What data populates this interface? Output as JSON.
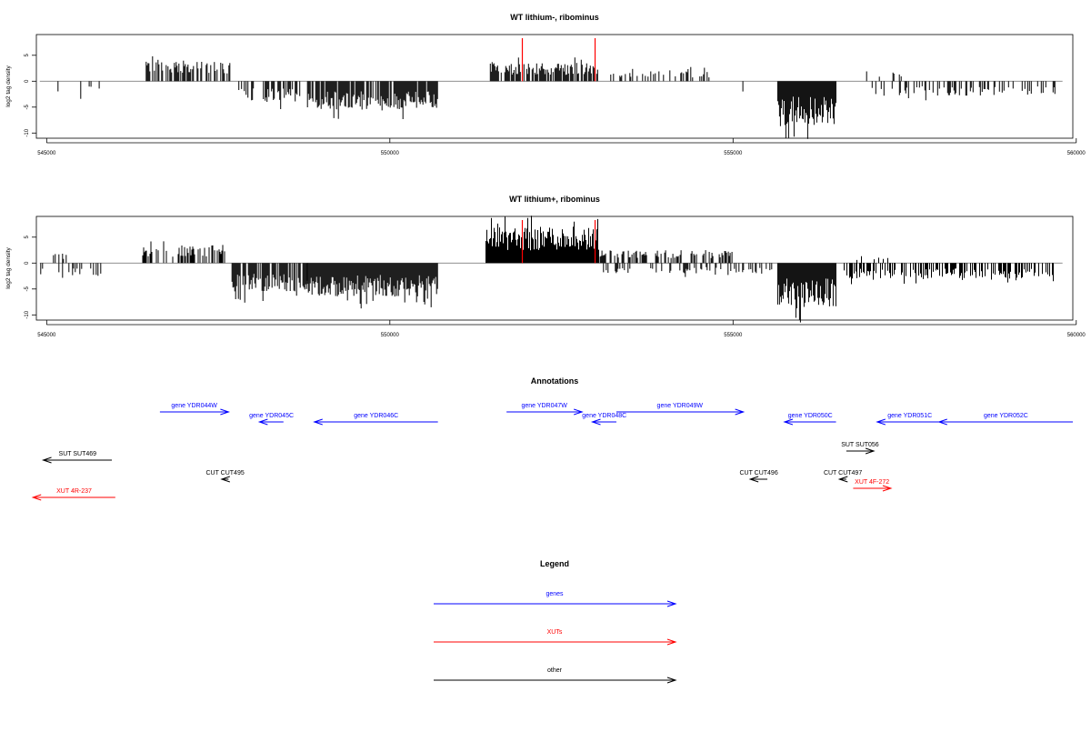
{
  "colors": {
    "genes": "#0000ff",
    "xuts": "#ff0000",
    "other": "#000000",
    "baseline": "#808080",
    "bars": "#000000",
    "markers": "#ff0000"
  },
  "chart_data": [
    {
      "type": "bar",
      "title": "WT lithium-, ribominus",
      "ylabel": "log2 tag density",
      "xlim": [
        544850,
        559950
      ],
      "ylim": [
        -11,
        9
      ],
      "xticks": [
        545000,
        550000,
        555000,
        560000
      ],
      "yticks": [
        5,
        0,
        -5,
        -10
      ],
      "markers_x": [
        551930,
        552990
      ],
      "regions": [
        {
          "from": 544900,
          "to": 545500,
          "sign": -1,
          "amp": 3.0,
          "density": 0.12
        },
        {
          "from": 545500,
          "to": 545850,
          "sign": -1,
          "amp": 2.0,
          "density": 0.08
        },
        {
          "from": 546450,
          "to": 547700,
          "sign": 1,
          "amp": 4.0,
          "density": 0.6
        },
        {
          "from": 547800,
          "to": 548700,
          "sign": -1,
          "amp": 4.0,
          "density": 0.5
        },
        {
          "from": 548800,
          "to": 550700,
          "sign": -1,
          "amp": 5.5,
          "density": 0.85
        },
        {
          "from": 551450,
          "to": 553050,
          "sign": 1,
          "amp": 3.5,
          "density": 0.7
        },
        {
          "from": 553100,
          "to": 554700,
          "sign": 1,
          "amp": 2.0,
          "density": 0.25
        },
        {
          "from": 555050,
          "to": 555300,
          "sign": -1,
          "amp": 2.0,
          "density": 0.1
        },
        {
          "from": 555650,
          "to": 556500,
          "sign": -1,
          "amp": 8.5,
          "density": 1.0
        },
        {
          "from": 556800,
          "to": 557500,
          "sign": 1,
          "amp": 2.0,
          "density": 0.08
        },
        {
          "from": 557000,
          "to": 559700,
          "sign": -1,
          "amp": 2.8,
          "density": 0.3
        }
      ]
    },
    {
      "type": "bar",
      "title": "WT lithium+, ribominus",
      "ylabel": "log2 tag density",
      "xlim": [
        544850,
        559950
      ],
      "ylim": [
        -11,
        9
      ],
      "xticks": [
        545000,
        550000,
        555000,
        560000
      ],
      "yticks": [
        5,
        0,
        -5,
        -10
      ],
      "markers_x": [
        551930,
        552990
      ],
      "regions": [
        {
          "from": 544900,
          "to": 545400,
          "sign": 1,
          "amp": 2.0,
          "density": 0.15
        },
        {
          "from": 544900,
          "to": 545900,
          "sign": -1,
          "amp": 2.5,
          "density": 0.2
        },
        {
          "from": 546400,
          "to": 547600,
          "sign": 1,
          "amp": 3.5,
          "density": 0.5
        },
        {
          "from": 547700,
          "to": 548800,
          "sign": -1,
          "amp": 5.5,
          "density": 0.8
        },
        {
          "from": 548800,
          "to": 550700,
          "sign": -1,
          "amp": 6.5,
          "density": 1.0
        },
        {
          "from": 551400,
          "to": 553050,
          "sign": 1,
          "amp": 7.0,
          "density": 1.0
        },
        {
          "from": 553050,
          "to": 555000,
          "sign": 1,
          "amp": 2.5,
          "density": 0.5
        },
        {
          "from": 553100,
          "to": 555600,
          "sign": -1,
          "amp": 2.0,
          "density": 0.25
        },
        {
          "from": 555650,
          "to": 556500,
          "sign": -1,
          "amp": 8.5,
          "density": 1.0
        },
        {
          "from": 556500,
          "to": 559700,
          "sign": -1,
          "amp": 3.0,
          "density": 0.45
        },
        {
          "from": 556500,
          "to": 557500,
          "sign": 1,
          "amp": 1.5,
          "density": 0.1
        }
      ]
    }
  ],
  "annotations": {
    "title": "Annotations",
    "items": [
      {
        "label": "gene YDR044W",
        "kind": "genes",
        "from": 546650,
        "to": 547650,
        "row": 0
      },
      {
        "label": "gene YDR045C",
        "kind": "genes",
        "from": 548450,
        "to": 548100,
        "row": 1
      },
      {
        "label": "gene YDR046C",
        "kind": "genes",
        "from": 550700,
        "to": 548900,
        "row": 1
      },
      {
        "label": "gene YDR047W",
        "kind": "genes",
        "from": 551700,
        "to": 552800,
        "row": 0
      },
      {
        "label": "gene YDR048C",
        "kind": "genes",
        "from": 553300,
        "to": 552950,
        "row": 1
      },
      {
        "label": "gene YDR049W",
        "kind": "genes",
        "from": 553300,
        "to": 555150,
        "row": 0
      },
      {
        "label": "gene YDR050C",
        "kind": "genes",
        "from": 556500,
        "to": 555750,
        "row": 1
      },
      {
        "label": "gene YDR051C",
        "kind": "genes",
        "from": 558050,
        "to": 557100,
        "row": 1
      },
      {
        "label": "gene YDR052C",
        "kind": "genes",
        "from": 559950,
        "to": 558000,
        "row": 1
      },
      {
        "label": "SUT SUT469",
        "kind": "other",
        "from": 545950,
        "to": 544950,
        "row": 2
      },
      {
        "label": "SUT SUT056",
        "kind": "other",
        "from": 556650,
        "to": 557050,
        "row": 3
      },
      {
        "label": "CUT CUT495",
        "kind": "other",
        "from": 547650,
        "to": 547550,
        "row": 4
      },
      {
        "label": "CUT CUT496",
        "kind": "other",
        "from": 555500,
        "to": 555250,
        "row": 4
      },
      {
        "label": "CUT CUT497",
        "kind": "other",
        "from": 556650,
        "to": 556550,
        "row": 4
      },
      {
        "label": "XUT 4F-272",
        "kind": "xuts",
        "from": 556750,
        "to": 557300,
        "row": 5
      },
      {
        "label": "XUT 4R-237",
        "kind": "xuts",
        "from": 546000,
        "to": 544800,
        "row": 6
      }
    ]
  },
  "legend": {
    "title": "Legend",
    "items": [
      {
        "label": "genes",
        "kind": "genes"
      },
      {
        "label": "XUTs",
        "kind": "xuts"
      },
      {
        "label": "other",
        "kind": "other"
      }
    ]
  }
}
